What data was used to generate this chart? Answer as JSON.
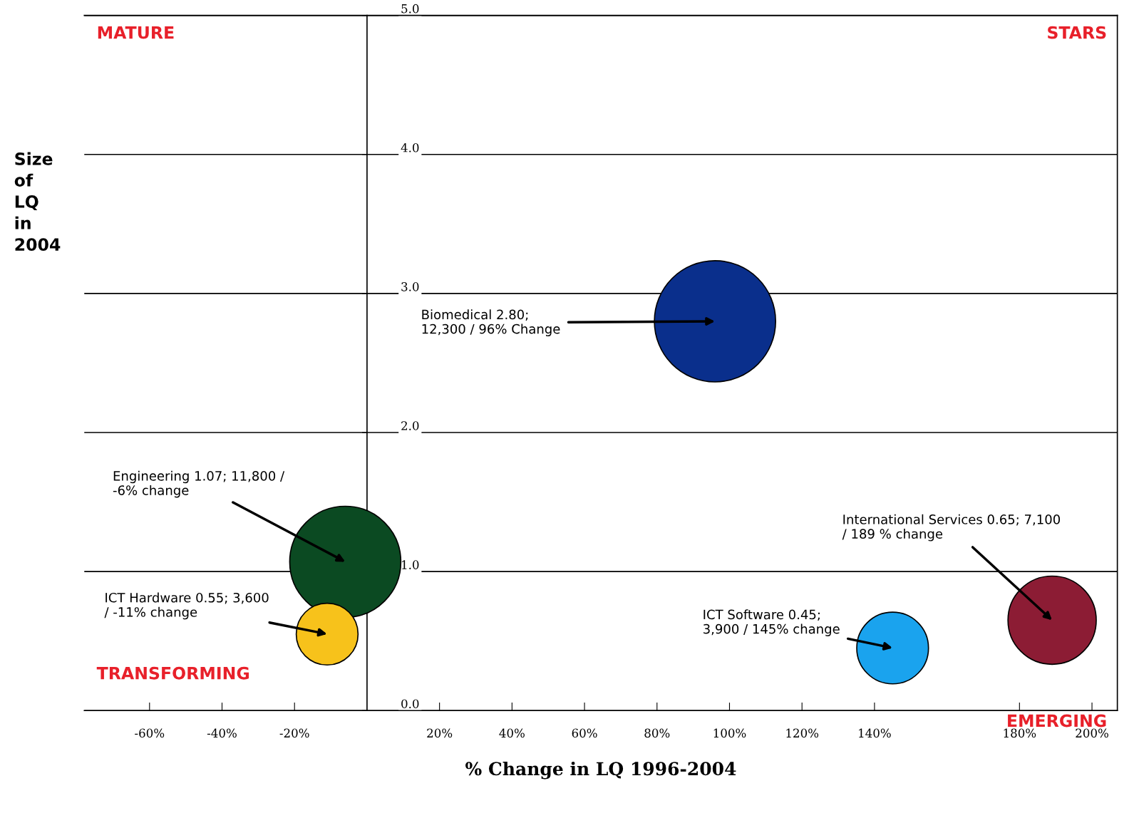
{
  "chart_data": {
    "type": "bubble",
    "xlabel": "% Change in LQ 1996-2004",
    "ylabel": "Size of LQ in 2004",
    "x": [
      96,
      -6,
      -11,
      145,
      189
    ],
    "values": [
      2.8,
      1.07,
      0.55,
      0.45,
      0.65
    ],
    "sizes": [
      1,
      0.84,
      0.26,
      0.35,
      0.53
    ],
    "colors": [
      "#0a2f8c",
      "#0b4a22",
      "#f7c21b",
      "#1aa3ee",
      "#8c1c34"
    ],
    "xlim": [
      -78,
      207
    ],
    "ylim": [
      0,
      5
    ],
    "xticks": [
      {
        "value": -60,
        "label": "-60%"
      },
      {
        "value": -40,
        "label": "-40%"
      },
      {
        "value": -20,
        "label": "-20%"
      },
      {
        "value": 20,
        "label": "20%"
      },
      {
        "value": 40,
        "label": "40%"
      },
      {
        "value": 60,
        "label": "60%"
      },
      {
        "value": 80,
        "label": "80%"
      },
      {
        "value": 100,
        "label": "100%"
      },
      {
        "value": 120,
        "label": "120%"
      },
      {
        "value": 140,
        "label": "140%"
      },
      {
        "value": 180,
        "label": "180%"
      },
      {
        "value": 200,
        "label": "200%"
      }
    ],
    "yticks": [
      {
        "value": 0,
        "label": "0.0"
      },
      {
        "value": 1,
        "label": "1.0"
      },
      {
        "value": 2,
        "label": "2.0"
      },
      {
        "value": 3,
        "label": "3.0"
      },
      {
        "value": 4,
        "label": "4.0"
      },
      {
        "value": 5,
        "label": "5.0"
      }
    ],
    "grid": "y",
    "annotations": [
      "MATURE",
      "STARS",
      "TRANSFORMING",
      "EMERGING",
      {
        "text": "Biomedical 2.80;\n12,300 / 96% Change",
        "x": 96,
        "y": 2.8
      },
      {
        "text": "Engineering 1.07; 11,800 /\n-6% change",
        "x": -6,
        "y": 1.07
      },
      {
        "text": "ICT Hardware 0.55; 3,600\n/ -11% change",
        "x": -11,
        "y": 0.55
      },
      {
        "text": "ICT Software 0.45;\n3,900 / 145% change",
        "x": 145,
        "y": 0.45
      },
      {
        "text": "International Services 0.65; 7,100\n/ 189 % change",
        "x": 189,
        "y": 0.65
      }
    ]
  }
}
